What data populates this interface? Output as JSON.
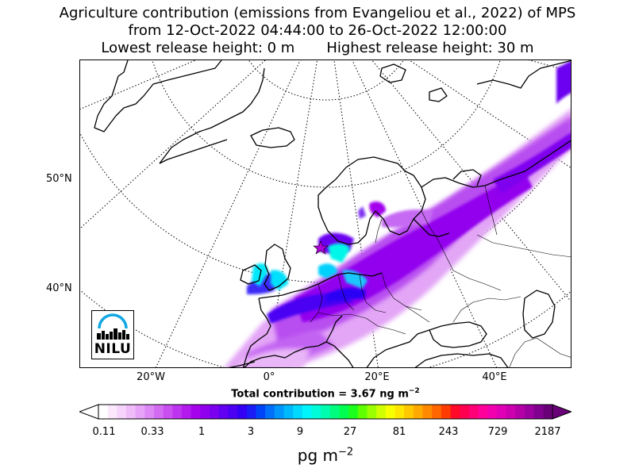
{
  "title": {
    "line1": "Agriculture contribution (emissions from Evangeliou et al., 2022) of MPS",
    "line2": "from 12-Oct-2022 04:44:00 to 26-Oct-2022 12:00:00",
    "lowest": "Lowest release height: 0 m",
    "highest": "Highest release height: 30 m"
  },
  "map": {
    "lat_labels": [
      "50°N",
      "40°N"
    ],
    "lon_labels": [
      "20°W",
      "0°",
      "20°E",
      "40°E"
    ],
    "logo_text": "NILU",
    "release_marker": "star-marker"
  },
  "summary": {
    "total_prefix": "Total contribution = 3.67 ng m",
    "total_exp": "−2"
  },
  "colorbar": {
    "ticks": [
      "0.11",
      "0.33",
      "1",
      "3",
      "9",
      "27",
      "81",
      "243",
      "729",
      "2187"
    ],
    "unit_base": "pg m",
    "unit_exp": "−2",
    "colors": [
      "#ffffff",
      "#fbe8fd",
      "#f5d3fb",
      "#efbcf9",
      "#e6a3f7",
      "#dd88f5",
      "#d36cf3",
      "#c94ff1",
      "#bd33ef",
      "#b21aee",
      "#a503ec",
      "#9000ee",
      "#7a00ef",
      "#6200f1",
      "#4b00f3",
      "#3300f5",
      "#1a1bf7",
      "#0044f8",
      "#0070fa",
      "#0096fb",
      "#00b8fc",
      "#00d8fd",
      "#00f4fb",
      "#00fbd8",
      "#00fcae",
      "#00fd80",
      "#00fe50",
      "#1cff1c",
      "#60ff00",
      "#9cff00",
      "#d0ff00",
      "#f8ff00",
      "#ffe600",
      "#ffc800",
      "#ffaa00",
      "#ff8a00",
      "#ff6600",
      "#ff3c00",
      "#ff0a28",
      "#ff0050",
      "#ff0078",
      "#ff009a",
      "#f200b0",
      "#e000b6",
      "#cc00b0",
      "#b500a8",
      "#9c00a0",
      "#820090",
      "#6a0078"
    ]
  }
}
